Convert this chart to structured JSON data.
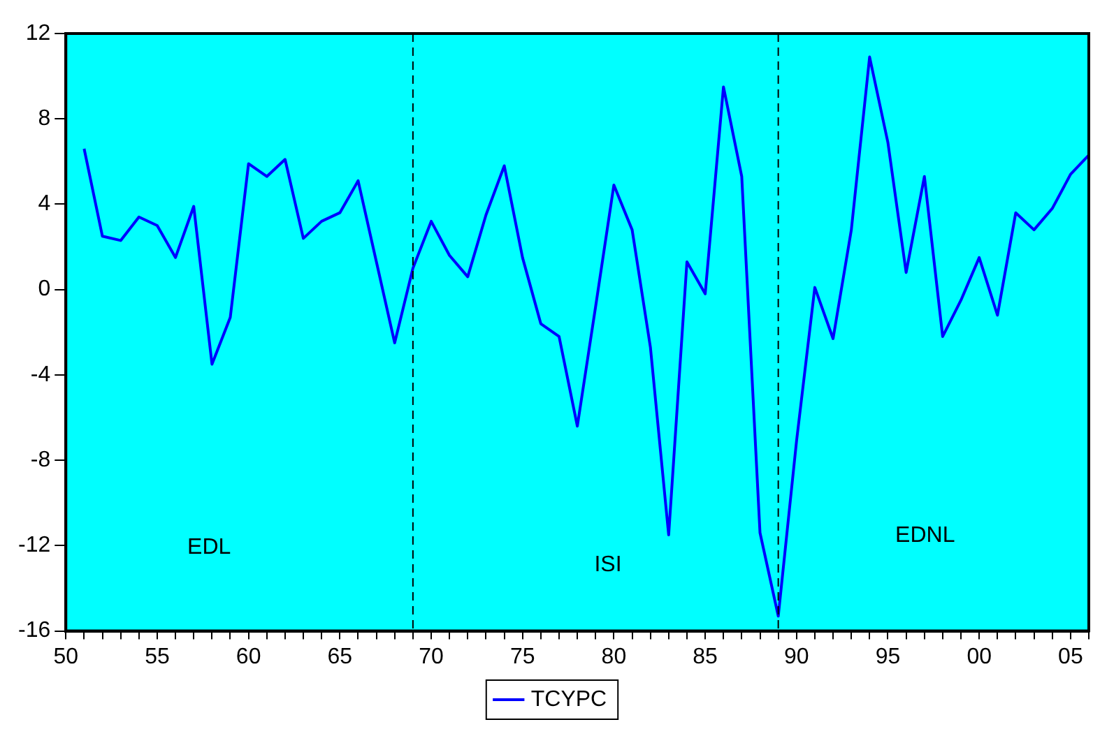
{
  "chart_data": {
    "type": "line",
    "x": [
      1951,
      1952,
      1953,
      1954,
      1955,
      1956,
      1957,
      1958,
      1959,
      1960,
      1961,
      1962,
      1963,
      1964,
      1965,
      1966,
      1967,
      1968,
      1969,
      1970,
      1971,
      1972,
      1973,
      1974,
      1975,
      1976,
      1977,
      1978,
      1979,
      1980,
      1981,
      1982,
      1983,
      1984,
      1985,
      1986,
      1987,
      1988,
      1989,
      1990,
      1991,
      1992,
      1993,
      1994,
      1995,
      1996,
      1997,
      1998,
      1999,
      2000,
      2001,
      2002,
      2003,
      2004,
      2005,
      2006
    ],
    "series": [
      {
        "name": "TCYPC",
        "color": "#0000ff",
        "values": [
          6.6,
          2.5,
          2.3,
          3.4,
          3.0,
          1.5,
          3.9,
          -3.5,
          -1.3,
          5.9,
          5.3,
          6.1,
          2.4,
          3.2,
          3.6,
          5.1,
          1.3,
          -2.5,
          1.0,
          3.2,
          1.6,
          0.6,
          3.5,
          5.8,
          1.5,
          -1.6,
          -2.2,
          -6.4,
          -0.8,
          4.9,
          2.8,
          -2.7,
          -11.5,
          1.3,
          -0.2,
          9.5,
          5.3,
          -11.4,
          -15.3,
          -7.1,
          0.1,
          -2.3,
          2.8,
          10.9,
          6.9,
          0.8,
          5.3,
          -2.2,
          -0.5,
          1.5,
          -1.2,
          3.6,
          2.8,
          3.8,
          5.4,
          6.3
        ]
      }
    ],
    "xlim": [
      1950,
      2006
    ],
    "xticks": [
      {
        "value": 1950,
        "label": "50"
      },
      {
        "value": 1951,
        "label": null
      },
      {
        "value": 1952,
        "label": null
      },
      {
        "value": 1953,
        "label": null
      },
      {
        "value": 1954,
        "label": null
      },
      {
        "value": 1955,
        "label": "55"
      },
      {
        "value": 1956,
        "label": null
      },
      {
        "value": 1957,
        "label": null
      },
      {
        "value": 1958,
        "label": null
      },
      {
        "value": 1959,
        "label": null
      },
      {
        "value": 1960,
        "label": "60"
      },
      {
        "value": 1961,
        "label": null
      },
      {
        "value": 1962,
        "label": null
      },
      {
        "value": 1963,
        "label": null
      },
      {
        "value": 1964,
        "label": null
      },
      {
        "value": 1965,
        "label": "65"
      },
      {
        "value": 1966,
        "label": null
      },
      {
        "value": 1967,
        "label": null
      },
      {
        "value": 1968,
        "label": null
      },
      {
        "value": 1969,
        "label": null
      },
      {
        "value": 1970,
        "label": "70"
      },
      {
        "value": 1971,
        "label": null
      },
      {
        "value": 1972,
        "label": null
      },
      {
        "value": 1973,
        "label": null
      },
      {
        "value": 1974,
        "label": null
      },
      {
        "value": 1975,
        "label": "75"
      },
      {
        "value": 1976,
        "label": null
      },
      {
        "value": 1977,
        "label": null
      },
      {
        "value": 1978,
        "label": null
      },
      {
        "value": 1979,
        "label": null
      },
      {
        "value": 1980,
        "label": "80"
      },
      {
        "value": 1981,
        "label": null
      },
      {
        "value": 1982,
        "label": null
      },
      {
        "value": 1983,
        "label": null
      },
      {
        "value": 1984,
        "label": null
      },
      {
        "value": 1985,
        "label": "85"
      },
      {
        "value": 1986,
        "label": null
      },
      {
        "value": 1987,
        "label": null
      },
      {
        "value": 1988,
        "label": null
      },
      {
        "value": 1989,
        "label": null
      },
      {
        "value": 1990,
        "label": "90"
      },
      {
        "value": 1991,
        "label": null
      },
      {
        "value": 1992,
        "label": null
      },
      {
        "value": 1993,
        "label": null
      },
      {
        "value": 1994,
        "label": null
      },
      {
        "value": 1995,
        "label": "95"
      },
      {
        "value": 1996,
        "label": null
      },
      {
        "value": 1997,
        "label": null
      },
      {
        "value": 1998,
        "label": null
      },
      {
        "value": 1999,
        "label": null
      },
      {
        "value": 2000,
        "label": "00"
      },
      {
        "value": 2001,
        "label": null
      },
      {
        "value": 2002,
        "label": null
      },
      {
        "value": 2003,
        "label": null
      },
      {
        "value": 2004,
        "label": null
      },
      {
        "value": 2005,
        "label": "05"
      },
      {
        "value": 2006,
        "label": null
      }
    ],
    "ylim": [
      -16,
      12
    ],
    "yticks": [
      -16,
      -12,
      -8,
      -4,
      0,
      4,
      8,
      12
    ],
    "ref_lines": [
      {
        "axis": "x",
        "value": 1969,
        "line_style": "dashed",
        "color": "#000000"
      },
      {
        "axis": "x",
        "value": 1989,
        "line_style": "dashed",
        "color": "#000000"
      }
    ],
    "annotations": [
      "EDL",
      "ISI",
      "EDNL"
    ],
    "grid": false,
    "legend": "bottom",
    "marker": "none",
    "line_style": "solid"
  }
}
